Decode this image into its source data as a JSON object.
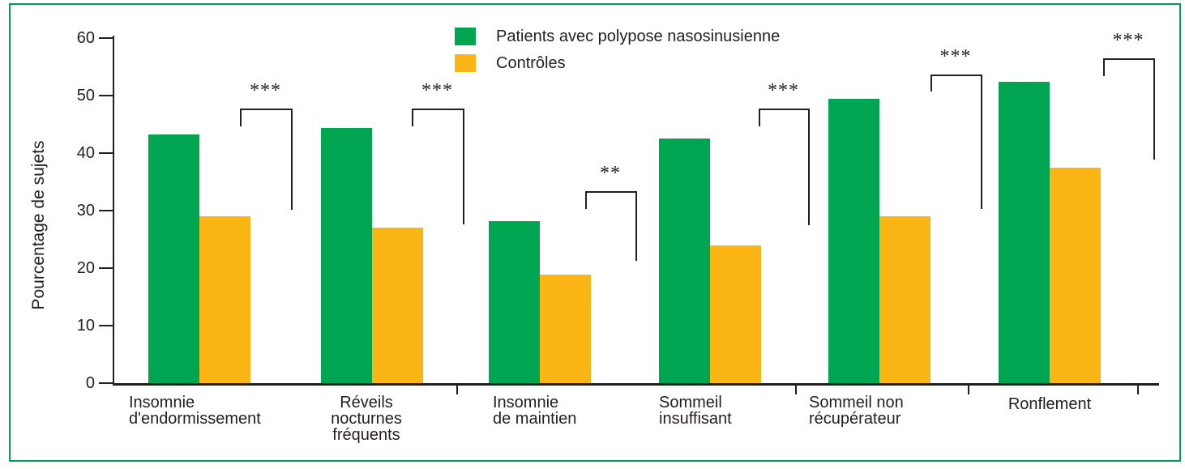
{
  "chart_data": {
    "type": "bar",
    "title": "",
    "xlabel": "",
    "ylabel": "Pourcentage de sujets",
    "ylim": [
      0,
      60
    ],
    "y_ticks": [
      0,
      10,
      20,
      30,
      40,
      50,
      60
    ],
    "grid": false,
    "legend_position": "top-center",
    "categories": [
      "Insomnie d'endormissement",
      "Réveils nocturnes fréquents",
      "Insomnie de maintien",
      "Sommeil insuffisant",
      "Sommeil non récupérateur",
      "Ronflement"
    ],
    "category_label_lines": [
      [
        "Insomnie",
        "d'endormissement"
      ],
      [
        "Réveils",
        "nocturnes",
        "fréquents"
      ],
      [
        "Insomnie",
        "de maintien"
      ],
      [
        "Sommeil",
        "insuffisant"
      ],
      [
        "Sommeil non",
        "récupérateur"
      ],
      [
        "Ronflement"
      ]
    ],
    "series": [
      {
        "name": "Patients avec polypose nasosinusienne",
        "color": "#00A551",
        "values": [
          43.2,
          44.4,
          28.1,
          42.5,
          49.5,
          52.4
        ]
      },
      {
        "name": "Contrôles",
        "color": "#FBB615",
        "values": [
          29.0,
          27.1,
          18.9,
          23.9,
          29.0,
          37.5
        ]
      }
    ],
    "significance": [
      "***",
      "***",
      "**",
      "***",
      "***",
      "***"
    ]
  },
  "colors": {
    "frame_border": "#009E52",
    "axis_and_text": "#231F20",
    "background": "#FFFFFF"
  }
}
